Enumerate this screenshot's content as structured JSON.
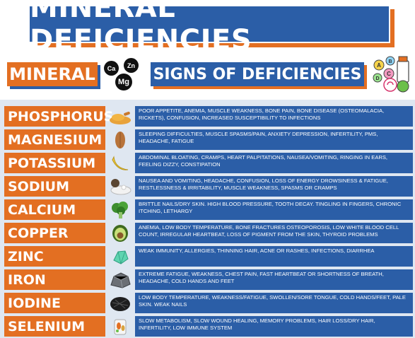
{
  "title": "MINERAL DEFICIENCIES",
  "headers": {
    "mineral": "MINERAL",
    "signs": "SIGNS OF DEFICIENCIES"
  },
  "chem_symbols": [
    "Ca",
    "Zn",
    "Mg"
  ],
  "nutrient_letters": [
    "A",
    "B",
    "C",
    "D"
  ],
  "colors": {
    "orange": "#e36f22",
    "blue": "#2b5ea7",
    "panel": "#dfe7f1"
  },
  "rows": [
    {
      "mineral": "PHOSPHORUS",
      "icon": "turmeric-powder-icon",
      "signs": "POOR APPETITE, ANEMIA, MUSCLE WEAKNESS, BONE PAIN, BONE DISEASE (OSTEOMALACIA, RICKETS), CONFUSION, INCREASED SUSCEPTIBILITY TO INFECTIONS"
    },
    {
      "mineral": "MAGNESIUM",
      "icon": "almond-icon",
      "signs": "SLEEPING DIFFICULTIES, MUSCLE SPASMS/PAIN, ANXIETY DEPRESSION, INFERTILITY, PMS, HEADACHE, FATIGUE"
    },
    {
      "mineral": "POTASSIUM",
      "icon": "banana-icon",
      "signs": "ABDOMINAL BLOATING, CRAMPS, HEART PALPITATIONS, NAUSEA/VOMITING, RINGING IN EARS, FEELING DIZZY, CONSTIPATION"
    },
    {
      "mineral": "SODIUM",
      "icon": "salt-icon",
      "signs": "NAUSEA AND VOMITING, HEADACHE, CONFUSION, LOSS OF ENERGY DROWSINESS & FATIGUE, RESTLESSNESS & IRRITABILITY, MUSCLE WEAKNESS, SPASMS OR CRAMPS"
    },
    {
      "mineral": "CALCIUM",
      "icon": "broccoli-icon",
      "signs": "BRITTLE NAILS/DRY SKIN. HIGH BLOOD PRESSURE, TOOTH DECAY. TINGLING IN FINGERS, CHRONIC ITCHING, LETHARGY"
    },
    {
      "mineral": "COPPER",
      "icon": "avocado-icon",
      "signs": "ANEMIA, LOW BODY TEMPERATURE, BONE FRACTURES OSTEOPOROSIS, LOW WHITE BLOOD CELL COUNT, IRREGULAR HEARTBEAT, LOSS OF PIGMENT FROM THE SKIN, THYROID PROBLEMS"
    },
    {
      "mineral": "ZINC",
      "icon": "zinc-crystal-icon",
      "signs": "WEAK IMMUNITY, ALLERGIES, THINNING HAIR, ACNE OR RASHES, INFECTIONS, DIARRHEA"
    },
    {
      "mineral": "IRON",
      "icon": "iron-ore-icon",
      "signs": "EXTREME FATIGUE, WEAKNESS, CHEST PAIN, FAST HEARTBEAT OR SHORTNESS OF BREATH, HEADACHE, COLD HANDS AND FEET"
    },
    {
      "mineral": "IODINE",
      "icon": "seaweed-icon",
      "signs": "LOW BODY TEMPERATURE, WEAKNESS/FATIGUE, SWOLLEN/SORE TONGUE, COLD HANDS/FEET, PALE SKIN. WEAK NAILS"
    },
    {
      "mineral": "SELENIUM",
      "icon": "supplement-icon",
      "signs": "SLOW METABOLISM, SLOW WOUND HEALING, MEMORY PROBLEMS, HAIR LOSS/DRY HAIR, INFERTILITY, LOW IMMUNE SYSTEM"
    }
  ]
}
